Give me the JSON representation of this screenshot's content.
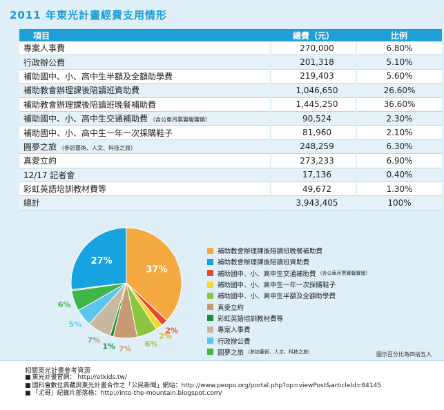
{
  "title": "2011 年東光計畫經費支用情形",
  "table": {
    "headers": {
      "item": "項目",
      "amount": "總費（元）",
      "ratio": "比例"
    },
    "rows": [
      {
        "item": "專案人事費",
        "note": "",
        "amount": "270,000",
        "ratio": "6.80%"
      },
      {
        "item": "行政辦公費",
        "note": "",
        "amount": "201,318",
        "ratio": "5.10%"
      },
      {
        "item": "補助國中、小、高中生半額及全額助學費",
        "note": "",
        "amount": "219,403",
        "ratio": "5.60%"
      },
      {
        "item": "補助教會辦理課後陪讀班資助費",
        "note": "",
        "amount": "1,046,650",
        "ratio": "26.60%"
      },
      {
        "item": "補助教會辦理課後陪讀班晚餐補助費",
        "note": "",
        "amount": "1,445,250",
        "ratio": "36.60%"
      },
      {
        "item": "補助國中、小、高中生交通補助費",
        "note": "（含公車月票實報實銷）",
        "amount": "90,524",
        "ratio": "2.30%"
      },
      {
        "item": "補助國中、小、高中生一年一次採購鞋子",
        "note": "",
        "amount": "81,960",
        "ratio": "2.10%"
      },
      {
        "item": "圓夢之旅",
        "note": "（參訪藝術、人文、科技之旅）",
        "amount": "248,259",
        "ratio": "6.30%"
      },
      {
        "item": "真愛立約",
        "note": "",
        "amount": "273,233",
        "ratio": "6.90%"
      },
      {
        "item": "12/17 記者會",
        "note": "",
        "amount": "17,136",
        "ratio": "0.40%"
      },
      {
        "item": "彩虹英語培訓教材費等",
        "note": "",
        "amount": "49,672",
        "ratio": "1.30%"
      },
      {
        "item": "總計",
        "note": "",
        "amount": "3,943,405",
        "ratio": "100%"
      }
    ]
  },
  "chart_data": {
    "type": "pie",
    "slices": [
      {
        "label": "補助教會辦理課後陪讀班晚餐補助費",
        "note": "",
        "value": 37,
        "display": "37%",
        "color": "#f5a941"
      },
      {
        "label": "補助國中、小、高中生交通補助費",
        "note": "（含公車月票實報實銷）",
        "value": 2,
        "display": "2%",
        "color": "#e64a26"
      },
      {
        "label": "補助國中、小、高中生一年一次採購鞋子",
        "note": "",
        "value": 2,
        "display": "2%",
        "color": "#f0d92b"
      },
      {
        "label": "補助國中、小、高中生半額及全額助學費",
        "note": "",
        "value": 6,
        "display": "6%",
        "color": "#8cc63f"
      },
      {
        "label": "真愛立約",
        "note": "",
        "value": 7,
        "display": "7%",
        "color": "#c79a72"
      },
      {
        "label": "彩虹英語培訓教材費等",
        "note": "",
        "value": 1,
        "display": "1%",
        "color": "#1c8c3f"
      },
      {
        "label": "專案人事費",
        "note": "",
        "value": 7,
        "display": "7%",
        "color": "#c8b8a0"
      },
      {
        "label": "行政辦公費",
        "note": "",
        "value": 5,
        "display": "5%",
        "color": "#5cc5ec"
      },
      {
        "label": "圓夢之旅",
        "note": "（參訪藝術、人文、科技之旅）",
        "value": 6,
        "display": "6%",
        "color": "#3fb54a"
      },
      {
        "label": "12／17記者會",
        "note": "",
        "value": 0.4,
        "display": "",
        "color": "#a0a0a0"
      },
      {
        "label": "補助教會辦理課後陪讀班資助費",
        "note": "",
        "value": 27,
        "display": "27%",
        "color": "#16a3e0"
      }
    ],
    "legend_order": [
      "補助教會辦理課後陪讀班晚餐補助費",
      "補助教會辦理課後陪讀班資助費",
      "補助國中、小、高中生交通補助費",
      "補助國中、小、高中生一年一次採購鞋子",
      "補助國中、小、高中生半額及全額助學費",
      "真愛立約",
      "彩虹英語培訓教材費等",
      "專案人事費",
      "行政辦公費",
      "圓夢之旅",
      "12／17記者會"
    ],
    "legend_placement": "right"
  },
  "rounding_note": "圖示百分比為四捨五入",
  "references": {
    "heading": "相關東光計畫參考資源",
    "items": [
      "東光計畫官網： http://etkids.tw/",
      "國科會數位典藏與東光計畫合作之「公民新聞」網站：http://www.peopo.org/portal.php?op=viewPost&articleId=84145",
      "「尤哥」紀錄片部落格：http://into-the-mountain.blogspot.com/"
    ]
  }
}
